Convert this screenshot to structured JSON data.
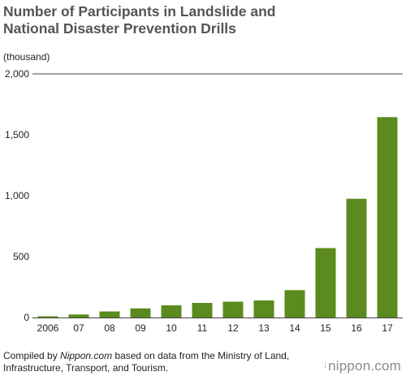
{
  "header": {
    "title_line1": "Number of Participants in Landslide and",
    "title_line2": "National Disaster Prevention Drills",
    "unit": "(thousand)"
  },
  "footer": {
    "source_prefix": "Compiled by ",
    "source_site": "Nippon.com",
    "source_rest": " based on data from the Ministry of Land, Infrastructure, Transport, and Tourism.",
    "brand": "nippon.com"
  },
  "chart_data": {
    "type": "bar",
    "categories": [
      "2006",
      "07",
      "08",
      "09",
      "10",
      "11",
      "12",
      "13",
      "14",
      "15",
      "16",
      "17"
    ],
    "values": [
      10,
      25,
      50,
      75,
      100,
      120,
      130,
      140,
      225,
      570,
      975,
      1645
    ],
    "yticks": [
      0,
      500,
      1000,
      1500,
      2000
    ],
    "ytick_labels": [
      "0",
      "500",
      "1,000",
      "1,500",
      "2,000"
    ],
    "ylim": [
      0,
      2000
    ],
    "bar_color": "#5b8a1e",
    "grid": "top line only"
  }
}
